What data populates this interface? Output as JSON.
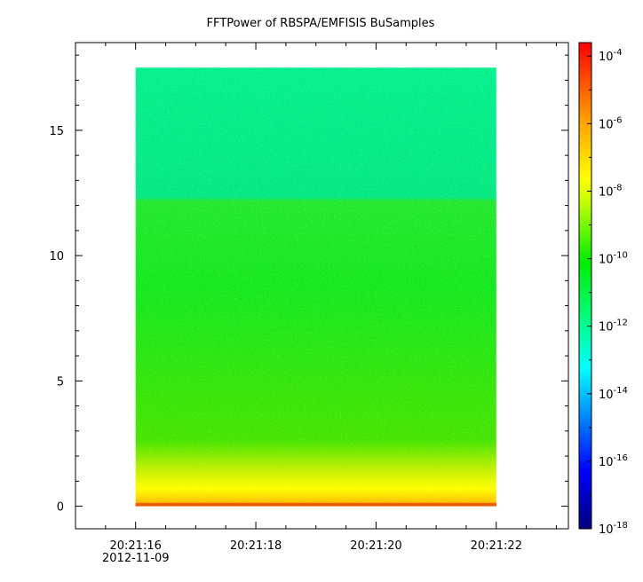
{
  "chart_data": {
    "type": "heatmap",
    "title": "FFTPower of RBSPA/EMFISIS  BuSamples",
    "xlabel": "",
    "ylabel": "",
    "x_axis": {
      "tick_labels": [
        "20:21:16",
        "20:21:18",
        "20:21:20",
        "20:21:22"
      ],
      "tick_values_seconds_after_20_21": [
        16,
        18,
        20,
        22
      ],
      "date_label": "2012-11-09",
      "range_seconds_after_20_21": [
        15.0,
        23.2
      ]
    },
    "y_axis": {
      "tick_labels": [
        "0",
        "5",
        "10",
        "15"
      ],
      "tick_values": [
        0,
        5,
        10,
        15
      ],
      "range": [
        -0.9,
        18.5
      ]
    },
    "data_extent": {
      "x_seconds_after_20_21": [
        16.0,
        22.0
      ],
      "y": [
        0.0,
        17.5
      ]
    },
    "regions": [
      {
        "y_from": 12.3,
        "y_to": 17.5,
        "log_power": -13
      },
      {
        "y_from": 2.5,
        "y_to": 12.3,
        "log_power": -11
      },
      {
        "y_from": 0.7,
        "y_to": 2.5,
        "log_power": -10
      },
      {
        "y_from": 0.2,
        "y_to": 0.7,
        "log_power": -8
      },
      {
        "y_from": 0.0,
        "y_to": 0.2,
        "log_power": -6
      }
    ],
    "colorbar": {
      "scale": "log",
      "range_exponent": [
        -18,
        -3.6
      ],
      "tick_exponents": [
        -4,
        -6,
        -8,
        -10,
        -12,
        -14,
        -16,
        -18
      ],
      "tick_labels": [
        {
          "base": "10",
          "exp": "-4"
        },
        {
          "base": "10",
          "exp": "-6"
        },
        {
          "base": "10",
          "exp": "-8"
        },
        {
          "base": "10",
          "exp": "-10"
        },
        {
          "base": "10",
          "exp": "-12"
        },
        {
          "base": "10",
          "exp": "-14"
        },
        {
          "base": "10",
          "exp": "-16"
        },
        {
          "base": "10",
          "exp": "-18"
        }
      ]
    },
    "grid": false,
    "legend": "none"
  }
}
